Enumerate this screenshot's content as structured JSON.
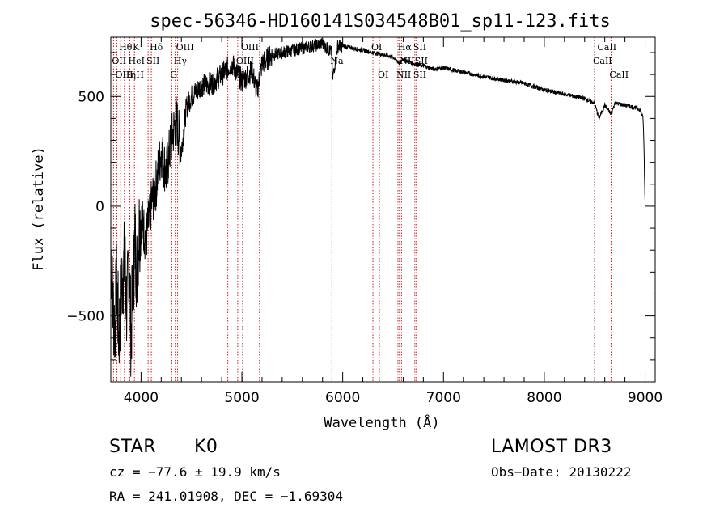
{
  "chart_data": {
    "type": "line",
    "title": "spec-56346-HD160141S034548B01_sp11-123.fits",
    "xlabel": "Wavelength (Å)",
    "ylabel": "Flux (relative)",
    "xlim": [
      3700,
      9100
    ],
    "ylim": [
      -800,
      770
    ],
    "x_ticks": [
      4000,
      5000,
      6000,
      7000,
      8000,
      9000
    ],
    "y_ticks": [
      -500,
      0,
      500
    ],
    "x_tick_labels": [
      "4000",
      "5000",
      "6000",
      "7000",
      "8000",
      "9000"
    ],
    "y_tick_labels": [
      "−500",
      "0",
      "500"
    ],
    "series": [
      {
        "name": "flux",
        "x": [
          3700,
          3720,
          3740,
          3760,
          3780,
          3800,
          3820,
          3840,
          3860,
          3880,
          3900,
          3920,
          3940,
          3960,
          3980,
          4000,
          4050,
          4100,
          4150,
          4200,
          4250,
          4300,
          4350,
          4400,
          4450,
          4500,
          4600,
          4700,
          4800,
          4900,
          5000,
          5100,
          5150,
          5200,
          5300,
          5400,
          5500,
          5600,
          5700,
          5800,
          5890,
          5900,
          5950,
          6000,
          6100,
          6200,
          6300,
          6400,
          6500,
          6563,
          6600,
          6700,
          6800,
          6900,
          7000,
          7200,
          7400,
          7600,
          7800,
          8000,
          8200,
          8400,
          8498,
          8542,
          8600,
          8662,
          8700,
          8800,
          8900,
          8950,
          8980,
          8990,
          8995,
          9000
        ],
        "y": [
          -200,
          -450,
          -550,
          -350,
          -600,
          -400,
          -300,
          -250,
          -500,
          -200,
          -600,
          -350,
          -150,
          -300,
          -100,
          -50,
          -150,
          0,
          100,
          250,
          150,
          300,
          400,
          250,
          450,
          500,
          550,
          560,
          600,
          650,
          570,
          620,
          520,
          650,
          690,
          700,
          710,
          720,
          730,
          740,
          700,
          580,
          730,
          730,
          720,
          710,
          700,
          690,
          680,
          650,
          670,
          650,
          640,
          625,
          630,
          610,
          590,
          575,
          560,
          530,
          510,
          490,
          470,
          400,
          460,
          420,
          470,
          460,
          450,
          440,
          400,
          250,
          100,
          20
        ]
      }
    ],
    "spectral_lines": [
      {
        "label": "Hθ",
        "x": 3798,
        "row": 1
      },
      {
        "label": "K",
        "x": 3934,
        "row": 1
      },
      {
        "label": "Hδ",
        "x": 4102,
        "row": 1
      },
      {
        "label": "OIII",
        "x": 4363,
        "row": 1
      },
      {
        "label": "OIII",
        "x": 5007,
        "row": 1
      },
      {
        "label": "OI",
        "x": 6300,
        "row": 1
      },
      {
        "label": "Hα",
        "x": 6563,
        "row": 1
      },
      {
        "label": "SII",
        "x": 6716,
        "row": 1
      },
      {
        "label": "CaII",
        "x": 8542,
        "row": 1
      },
      {
        "label": "OII",
        "x": 3727,
        "row": 2
      },
      {
        "label": "HeI",
        "x": 3889,
        "row": 2
      },
      {
        "label": "SII",
        "x": 4070,
        "row": 2
      },
      {
        "label": "Hγ",
        "x": 4340,
        "row": 2
      },
      {
        "label": "OIII",
        "x": 4959,
        "row": 2
      },
      {
        "label": "Na",
        "x": 5893,
        "row": 2
      },
      {
        "label": "NII",
        "x": 6583,
        "row": 2
      },
      {
        "label": "SII",
        "x": 6731,
        "row": 2
      },
      {
        "label": "CaII",
        "x": 8498,
        "row": 2
      },
      {
        "label": "OIII",
        "x": 3760,
        "row": 3
      },
      {
        "label": "Hη",
        "x": 3835,
        "row": 3
      },
      {
        "label": "H",
        "x": 3968,
        "row": 3
      },
      {
        "label": "G",
        "x": 4305,
        "row": 3
      },
      {
        "label": "OI",
        "x": 6364,
        "row": 3
      },
      {
        "label": "NII",
        "x": 6548,
        "row": 3
      },
      {
        "label": "SII",
        "x": 6716,
        "row": 3
      },
      {
        "label": "CaII",
        "x": 8662,
        "row": 3
      }
    ],
    "extra_line_x": [
      4861,
      5175
    ]
  },
  "info": {
    "obj_class": "STAR",
    "subclass": "K0",
    "survey": "LAMOST DR3",
    "cz": "cz = −77.6 ± 19.9 km/s",
    "obs_date": "Obs−Date: 20130222",
    "coords": "RA = 241.01908, DEC =  −1.69304"
  },
  "colors": {
    "line_marker": "#cc0000",
    "spectrum": "#000000"
  }
}
